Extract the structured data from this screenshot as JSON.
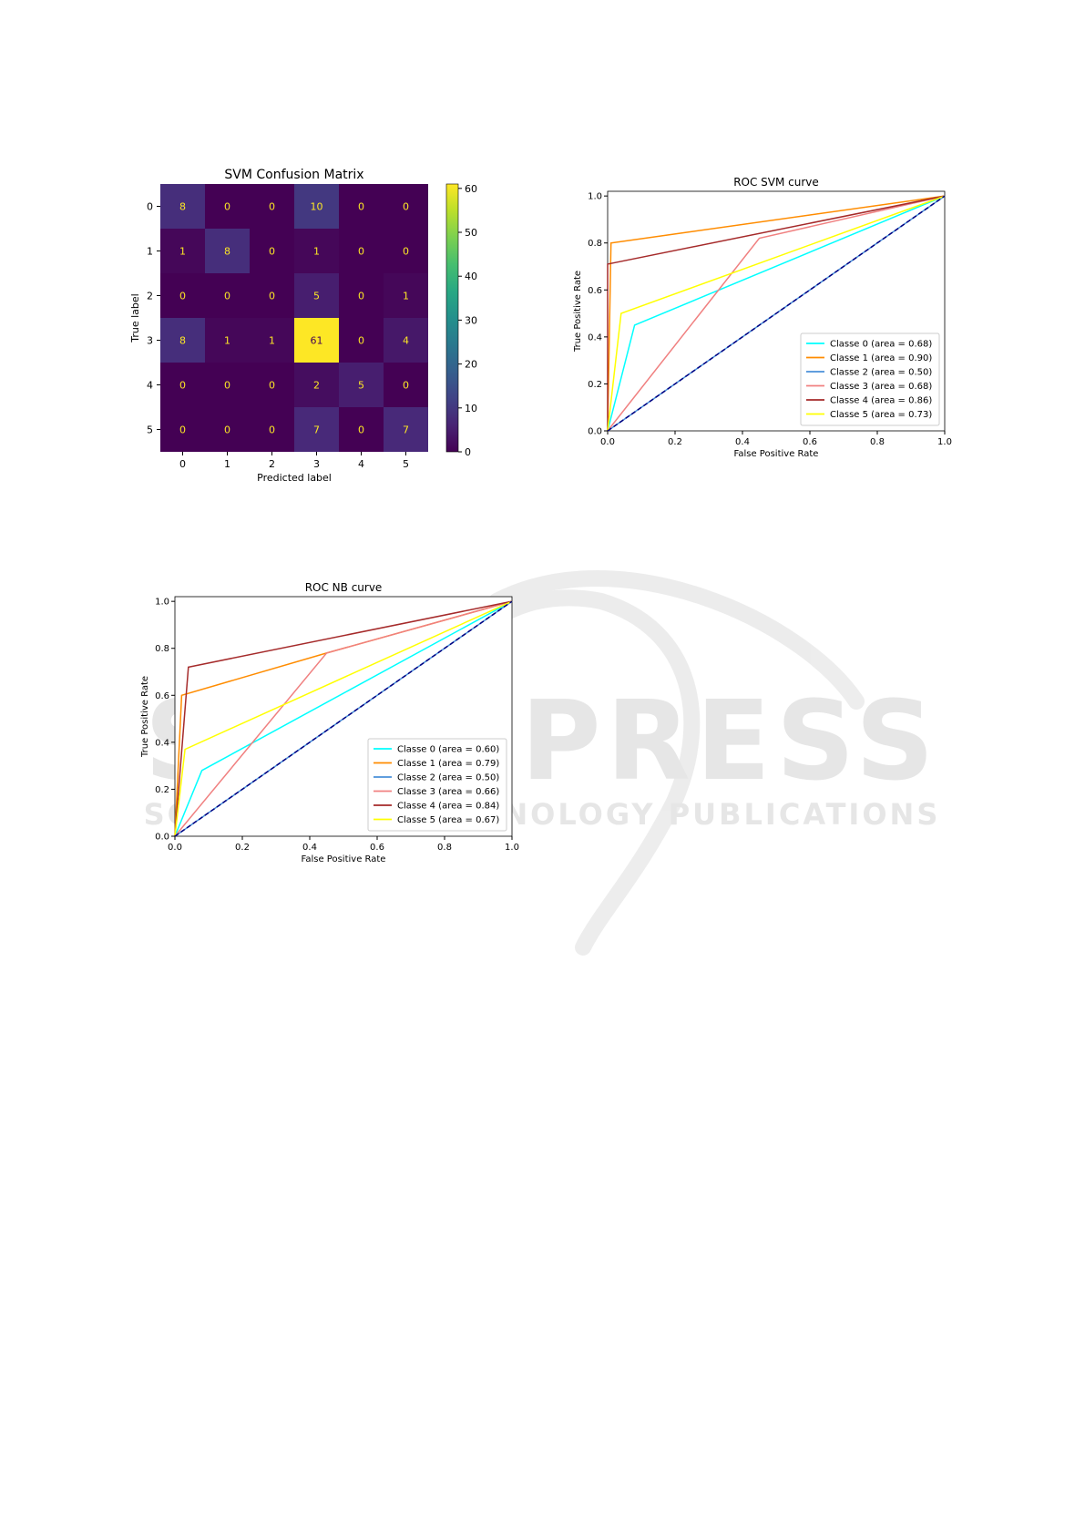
{
  "watermark": {
    "line1": "SCITEPRESS",
    "line2": "SCIENCE AND TECHNOLOGY PUBLICATIONS"
  },
  "chart_data": [
    {
      "type": "heatmap",
      "title": "SVM Confusion Matrix",
      "xlabel": "Predicted label",
      "ylabel": "True label",
      "x_ticks": [
        "0",
        "1",
        "2",
        "3",
        "4",
        "5"
      ],
      "y_ticks": [
        "0",
        "1",
        "2",
        "3",
        "4",
        "5"
      ],
      "matrix": [
        [
          8,
          0,
          0,
          10,
          0,
          0
        ],
        [
          1,
          8,
          0,
          1,
          0,
          0
        ],
        [
          0,
          0,
          0,
          5,
          0,
          1
        ],
        [
          8,
          1,
          1,
          61,
          0,
          4
        ],
        [
          0,
          0,
          0,
          2,
          5,
          0
        ],
        [
          0,
          0,
          0,
          7,
          0,
          7
        ]
      ],
      "vmin": 0,
      "vmax": 61,
      "colormap": "viridis",
      "colorbar_ticks": [
        "0",
        "10",
        "20",
        "30",
        "40",
        "50",
        "60"
      ]
    },
    {
      "type": "line",
      "title": "ROC SVM curve",
      "xlabel": "False Positive Rate",
      "ylabel": "True Positive Rate",
      "xlim": [
        0,
        1
      ],
      "ylim": [
        0,
        1.02
      ],
      "x_ticks": [
        "0.0",
        "0.2",
        "0.4",
        "0.6",
        "0.8",
        "1.0"
      ],
      "y_ticks": [
        "0.0",
        "0.2",
        "0.4",
        "0.6",
        "0.8",
        "1.0"
      ],
      "legend_position": "lower-right",
      "series": [
        {
          "name": "Classe 0 (area = 0.68)",
          "color": "#00ffff",
          "points": [
            [
              0,
              0
            ],
            [
              0.08,
              0.45
            ],
            [
              1,
              1
            ]
          ]
        },
        {
          "name": "Classe 1 (area = 0.90)",
          "color": "#ff8c00",
          "points": [
            [
              0,
              0
            ],
            [
              0.01,
              0.8
            ],
            [
              1,
              1
            ]
          ]
        },
        {
          "name": "Classe 2 (area = 0.50)",
          "color": "#4a90d9",
          "points": [
            [
              0,
              0
            ],
            [
              1,
              1
            ]
          ]
        },
        {
          "name": "Classe 3 (area = 0.68)",
          "color": "#f08080",
          "points": [
            [
              0,
              0
            ],
            [
              0.45,
              0.82
            ],
            [
              1,
              1
            ]
          ]
        },
        {
          "name": "Classe 4 (area = 0.86)",
          "color": "#a52a2a",
          "points": [
            [
              0,
              0
            ],
            [
              0,
              0.71
            ],
            [
              1,
              1
            ]
          ]
        },
        {
          "name": "Classe 5 (area = 0.73)",
          "color": "#ffff00",
          "points": [
            [
              0,
              0
            ],
            [
              0.04,
              0.5
            ],
            [
              1,
              1
            ]
          ]
        }
      ],
      "diagonal_color": "#000080"
    },
    {
      "type": "line",
      "title": "ROC NB curve",
      "xlabel": "False Positive Rate",
      "ylabel": "True Positive Rate",
      "xlim": [
        0,
        1
      ],
      "ylim": [
        0,
        1.02
      ],
      "x_ticks": [
        "0.0",
        "0.2",
        "0.4",
        "0.6",
        "0.8",
        "1.0"
      ],
      "y_ticks": [
        "0.0",
        "0.2",
        "0.4",
        "0.6",
        "0.8",
        "1.0"
      ],
      "legend_position": "lower-right",
      "series": [
        {
          "name": "Classe 0 (area = 0.60)",
          "color": "#00ffff",
          "points": [
            [
              0,
              0
            ],
            [
              0.08,
              0.28
            ],
            [
              1,
              1
            ]
          ]
        },
        {
          "name": "Classe 1 (area = 0.79)",
          "color": "#ff8c00",
          "points": [
            [
              0,
              0
            ],
            [
              0.02,
              0.6
            ],
            [
              0.45,
              0.78
            ],
            [
              1,
              1
            ]
          ]
        },
        {
          "name": "Classe 2 (area = 0.50)",
          "color": "#4a90d9",
          "points": [
            [
              0,
              0
            ],
            [
              1,
              1
            ]
          ]
        },
        {
          "name": "Classe 3 (area = 0.66)",
          "color": "#f08080",
          "points": [
            [
              0,
              0
            ],
            [
              0.45,
              0.78
            ],
            [
              1,
              1
            ]
          ]
        },
        {
          "name": "Classe 4 (area = 0.84)",
          "color": "#a52a2a",
          "points": [
            [
              0,
              0
            ],
            [
              0.04,
              0.72
            ],
            [
              1,
              1
            ]
          ]
        },
        {
          "name": "Classe 5 (area = 0.67)",
          "color": "#ffff00",
          "points": [
            [
              0,
              0
            ],
            [
              0.03,
              0.37
            ],
            [
              1,
              1
            ]
          ]
        }
      ],
      "diagonal_color": "#000080"
    }
  ]
}
